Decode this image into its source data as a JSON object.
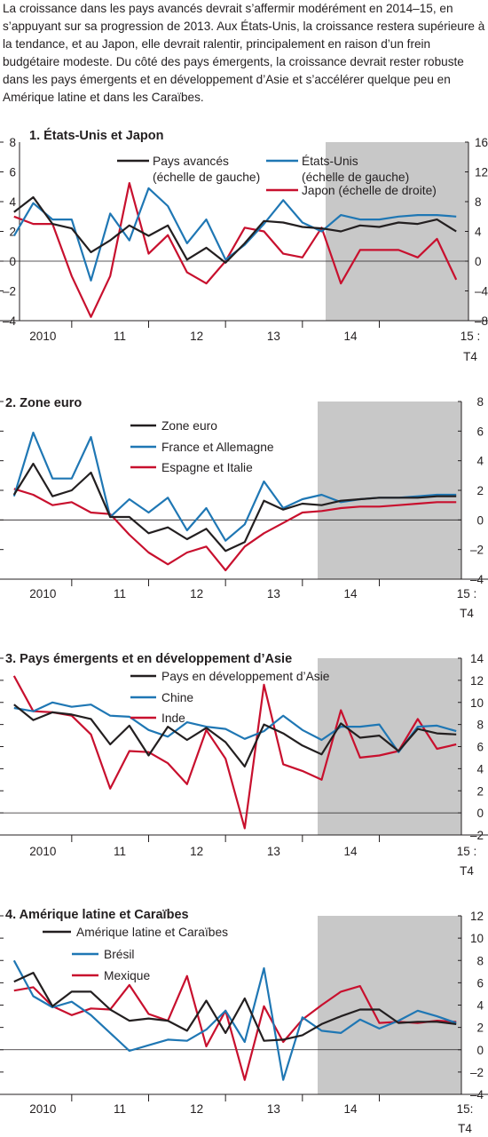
{
  "intro_text": "La croissance dans les pays avancés devrait s’affermir modérément en 2014–15, en s’appuyant sur sa progression de 2013. Aux États-Unis, la croissance restera supérieure à la tendance, et au Japon, elle devrait ralentir, principalement en raison d’un frein budgétaire modeste. Du côté des pays émergents, la croissance devrait rester robuste dans les pays émergents et en développement d’Asie et s’accélérer quelque peu en Amérique latine et dans les Caraïbes.",
  "colors": {
    "black": "#231f20",
    "blue": "#1f77b4",
    "red": "#c8102e",
    "shade": "#c8c8c8"
  },
  "chart_data": [
    {
      "type": "line",
      "title": "1. États-Unis et Japon",
      "x_labels": [
        "2010",
        "11",
        "12",
        "13",
        "14",
        "15 :",
        "T4"
      ],
      "forecast_start": "2014",
      "left_axis": {
        "ylim": [
          -4,
          8
        ],
        "ticks": [
          "8",
          "6",
          "4",
          "2",
          "0",
          "–2",
          "–4"
        ]
      },
      "right_axis": {
        "ylim": [
          -8,
          16
        ],
        "ticks": [
          "16",
          "12",
          "8",
          "4",
          "0",
          "–4",
          "–8"
        ]
      },
      "series": [
        {
          "name": "Pays avancés",
          "name2": "(échelle de gauche)",
          "color": "black",
          "axis": "left",
          "values": [
            3.3,
            4.3,
            2.5,
            2.2,
            0.6,
            1.4,
            2.4,
            1.7,
            2.4,
            0.1,
            0.9,
            -0.1,
            1.2,
            2.7,
            2.6,
            2.3,
            2.2,
            2.0,
            2.4,
            2.3,
            2.6,
            2.5,
            2.8,
            2.0
          ]
        },
        {
          "name": "États-Unis",
          "name2": "(échelle de gauche)",
          "color": "blue",
          "axis": "left",
          "values": [
            1.7,
            3.9,
            2.8,
            2.8,
            -1.3,
            3.2,
            1.4,
            4.9,
            3.7,
            1.2,
            2.8,
            0.1,
            1.1,
            2.5,
            4.1,
            2.6,
            2.0,
            3.1,
            2.8,
            2.8,
            3.0,
            3.1,
            3.1,
            3.0
          ]
        },
        {
          "name": "Japon (échelle de droite)",
          "name2": "",
          "color": "red",
          "axis": "right",
          "values": [
            6.0,
            5.0,
            5.0,
            -2.0,
            -7.5,
            -2.0,
            10.5,
            1.0,
            3.5,
            -1.5,
            -3.0,
            0.0,
            4.5,
            4.0,
            1.0,
            0.5,
            4.5,
            -3.0,
            1.5,
            1.5,
            1.5,
            0.5,
            3.0,
            -2.5
          ]
        }
      ]
    },
    {
      "type": "line",
      "title": "2. Zone euro",
      "x_labels": [
        "2010",
        "11",
        "12",
        "13",
        "14",
        "15 :",
        "T4"
      ],
      "forecast_start": "2014",
      "left_axis": {
        "ylim": [
          -4,
          8
        ]
      },
      "right_axis": {
        "ylim": [
          -4,
          8
        ],
        "ticks": [
          "8",
          "6",
          "4",
          "2",
          "0",
          "–2",
          "–4"
        ]
      },
      "series": [
        {
          "name": "Zone euro",
          "color": "black",
          "axis": "right",
          "values": [
            1.7,
            3.8,
            1.6,
            2.0,
            3.2,
            0.2,
            0.2,
            -0.9,
            -0.5,
            -1.3,
            -0.6,
            -2.1,
            -1.5,
            1.3,
            0.7,
            1.1,
            1.0,
            1.3,
            1.4,
            1.5,
            1.5,
            1.5,
            1.6,
            1.6
          ]
        },
        {
          "name": "France et Allemagne",
          "color": "blue",
          "axis": "right",
          "values": [
            1.6,
            5.9,
            2.8,
            2.8,
            5.6,
            0.2,
            1.4,
            0.5,
            1.5,
            -0.7,
            0.8,
            -1.4,
            -0.3,
            2.6,
            0.8,
            1.4,
            1.7,
            1.2,
            1.4,
            1.5,
            1.5,
            1.6,
            1.7,
            1.7
          ]
        },
        {
          "name": "Espagne et Italie",
          "color": "red",
          "axis": "right",
          "values": [
            2.1,
            1.7,
            1.0,
            1.2,
            0.5,
            0.4,
            -1.0,
            -2.2,
            -3.0,
            -2.2,
            -1.8,
            -3.4,
            -1.8,
            -0.9,
            -0.2,
            0.5,
            0.6,
            0.8,
            0.9,
            0.9,
            1.0,
            1.1,
            1.2,
            1.2
          ]
        }
      ]
    },
    {
      "type": "line",
      "title": "3. Pays émergents et en développement d’Asie",
      "x_labels": [
        "2010",
        "11",
        "12",
        "13",
        "14",
        "15 :",
        "T4"
      ],
      "forecast_start": "2014",
      "left_axis": {
        "ylim": [
          -2,
          14
        ]
      },
      "right_axis": {
        "ylim": [
          -2,
          14
        ],
        "ticks": [
          "14",
          "12",
          "10",
          "8",
          "6",
          "4",
          "2",
          "0",
          "–2"
        ]
      },
      "series": [
        {
          "name": "Pays en développement d’Asie",
          "color": "black",
          "axis": "right",
          "values": [
            9.8,
            8.4,
            9.1,
            8.9,
            8.5,
            6.2,
            7.9,
            5.2,
            7.8,
            6.6,
            7.7,
            6.4,
            4.2,
            8.0,
            7.2,
            6.1,
            5.3,
            8.1,
            6.8,
            7.0,
            5.6,
            7.6,
            7.2,
            7.1
          ]
        },
        {
          "name": "Chine",
          "color": "blue",
          "axis": "right",
          "values": [
            9.5,
            9.2,
            10.0,
            9.6,
            9.8,
            8.8,
            8.7,
            7.5,
            6.9,
            8.2,
            7.8,
            7.6,
            6.7,
            7.4,
            8.8,
            7.5,
            6.6,
            7.8,
            7.8,
            8.0,
            5.5,
            7.8,
            7.9,
            7.4
          ]
        },
        {
          "name": "Inde",
          "color": "red",
          "axis": "right",
          "values": [
            12.4,
            9.2,
            9.1,
            8.8,
            7.1,
            2.2,
            5.6,
            5.5,
            4.5,
            2.6,
            7.5,
            4.9,
            -1.4,
            11.6,
            4.4,
            3.8,
            3.0,
            9.3,
            5.0,
            5.2,
            5.6,
            8.5,
            5.8,
            6.2
          ]
        }
      ]
    },
    {
      "type": "line",
      "title": "4. Amérique latine et Caraïbes",
      "x_labels": [
        "2010",
        "11",
        "12",
        "13",
        "14",
        "15:",
        "T4"
      ],
      "forecast_start": "2014",
      "left_axis": {
        "ylim": [
          -4,
          12
        ]
      },
      "right_axis": {
        "ylim": [
          -4,
          12
        ],
        "ticks": [
          "12",
          "10",
          "8",
          "6",
          "4",
          "2",
          "0",
          "–2",
          "–4"
        ]
      },
      "series": [
        {
          "name": "Amérique latine et Caraïbes",
          "color": "black",
          "axis": "right",
          "values": [
            6.1,
            6.9,
            3.9,
            5.2,
            5.2,
            3.6,
            2.6,
            2.8,
            2.6,
            1.7,
            4.4,
            1.5,
            4.6,
            0.8,
            0.9,
            1.3,
            2.3,
            3.0,
            3.6,
            3.6,
            2.4,
            2.5,
            2.5,
            2.3
          ]
        },
        {
          "name": "Brésil",
          "color": "blue",
          "axis": "right",
          "values": [
            8.0,
            4.8,
            3.8,
            4.3,
            3.1,
            1.5,
            -0.1,
            0.4,
            0.9,
            0.8,
            1.8,
            3.5,
            0.7,
            7.3,
            -2.7,
            2.9,
            1.7,
            1.5,
            2.7,
            1.9,
            2.6,
            3.5,
            3.0,
            2.4
          ]
        },
        {
          "name": "Mexique",
          "color": "red",
          "axis": "right",
          "values": [
            5.3,
            5.6,
            3.9,
            3.1,
            3.7,
            3.6,
            5.8,
            3.2,
            2.6,
            6.6,
            0.3,
            3.5,
            -2.7,
            3.9,
            0.7,
            2.7,
            4.0,
            5.2,
            5.7,
            2.4,
            2.5,
            2.4,
            2.6,
            2.5
          ]
        }
      ]
    }
  ]
}
